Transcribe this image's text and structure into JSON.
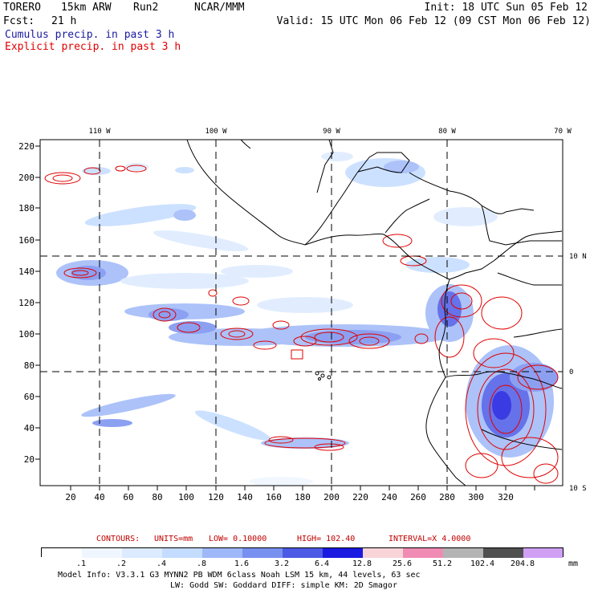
{
  "header": {
    "model": "TORERO",
    "resolution": "15km ARW",
    "run": "Run2",
    "org": "NCAR/MMM",
    "init": "Init: 18 UTC Sun 05 Feb 12",
    "fcst_label": "Fcst:",
    "fcst_value": "21 h",
    "valid": "Valid: 15 UTC Mon 06 Feb 12 (09 CST Mon 06 Feb 12)"
  },
  "legend": {
    "cumulus": "Cumulus precip. in past 3 h",
    "explicit": "Explicit precip. in past 3 h",
    "cumulus_color": "#1a1aa0",
    "explicit_color": "#e00000"
  },
  "axes": {
    "lon_labels": [
      "110 W",
      "100 W",
      "90 W",
      "80 W",
      "70 W"
    ],
    "lat_labels": [
      "10 N",
      "0",
      "10 S"
    ],
    "x_ticks": [
      "20",
      "40",
      "60",
      "80",
      "100",
      "120",
      "140",
      "160",
      "180",
      "200",
      "220",
      "240",
      "260",
      "280",
      "300",
      "320"
    ],
    "y_ticks": [
      "220",
      "200",
      "180",
      "160",
      "140",
      "120",
      "100",
      "80",
      "60",
      "40",
      "20"
    ]
  },
  "contours": {
    "label": "CONTOURS:",
    "units": "UNITS=mm",
    "low": "LOW= 0.10000",
    "high": "HIGH= 102.40",
    "interval": "INTERVAL=X 4.0000"
  },
  "colorbar": {
    "labels": [
      ".1",
      ".2",
      ".4",
      ".8",
      "1.6",
      "3.2",
      "6.4",
      "12.8",
      "25.6",
      "51.2",
      "102.4",
      "204.8"
    ],
    "colors": [
      "#ffffff",
      "#f0f6ff",
      "#dcebff",
      "#c4dcff",
      "#9eb8f8",
      "#7890f0",
      "#4c5ae6",
      "#1a1ae0",
      "#f8d4d8",
      "#f08cb4",
      "#b4b4b4",
      "#505050",
      "#d0a0f4"
    ],
    "unit": "mm"
  },
  "footer": {
    "line1": "Model Info: V3.3.1    G3      MYNN2 PB WDM 6class  Noah LSM  15 km,   44 levels,   63 sec",
    "line2": "LW: Godd SW: Goddard DIFF: simple KM: 2D Smagor"
  }
}
